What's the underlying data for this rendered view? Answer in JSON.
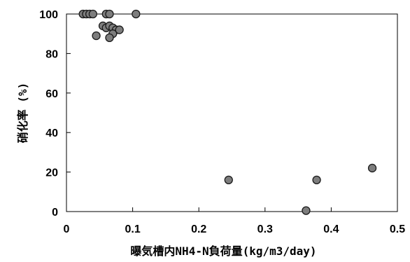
{
  "chart_data": {
    "type": "scatter",
    "title": "",
    "xlabel": "曝気槽内NH4-N負荷量(kg/m3/day)",
    "ylabel": "硝化率 (%)",
    "xlim": [
      0,
      0.5
    ],
    "ylim": [
      0,
      100
    ],
    "x_ticks": [
      "0",
      "0.1",
      "0.2",
      "0.3",
      "0.4",
      "0.5"
    ],
    "y_ticks": [
      "0",
      "20",
      "40",
      "60",
      "80",
      "100"
    ],
    "grid": false,
    "legend": "none",
    "marker_color": "#7d7d7d",
    "marker_edge_color": "#1a1a1a",
    "series": [
      {
        "points": [
          [
            0.025,
            100
          ],
          [
            0.03,
            100
          ],
          [
            0.035,
            100
          ],
          [
            0.04,
            100
          ],
          [
            0.06,
            100
          ],
          [
            0.065,
            100
          ],
          [
            0.105,
            100
          ],
          [
            0.045,
            89
          ],
          [
            0.055,
            94
          ],
          [
            0.06,
            93
          ],
          [
            0.065,
            94
          ],
          [
            0.07,
            93
          ],
          [
            0.075,
            92
          ],
          [
            0.07,
            90
          ],
          [
            0.065,
            88
          ],
          [
            0.08,
            92
          ],
          [
            0.245,
            16
          ],
          [
            0.362,
            0.5
          ],
          [
            0.378,
            16
          ],
          [
            0.462,
            22
          ]
        ]
      }
    ]
  }
}
